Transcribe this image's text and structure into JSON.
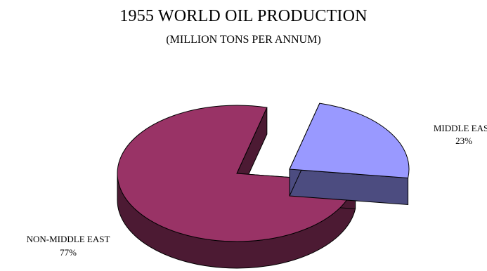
{
  "chart_data": {
    "type": "pie",
    "title": "1955 WORLD OIL PRODUCTION",
    "subtitle": "(MILLION TONS PER ANNUM)",
    "slices": [
      {
        "label": "MIDDLE EAST",
        "value": 23,
        "display": "23%",
        "color": "#9999ff",
        "side_color": "#4c4c80",
        "exploded": true
      },
      {
        "label": "NON-MIDDLE EAST",
        "value": 77,
        "display": "77%",
        "color": "#993366",
        "side_color": "#4c1a33",
        "exploded": false
      }
    ],
    "style": "3d-exploded"
  }
}
